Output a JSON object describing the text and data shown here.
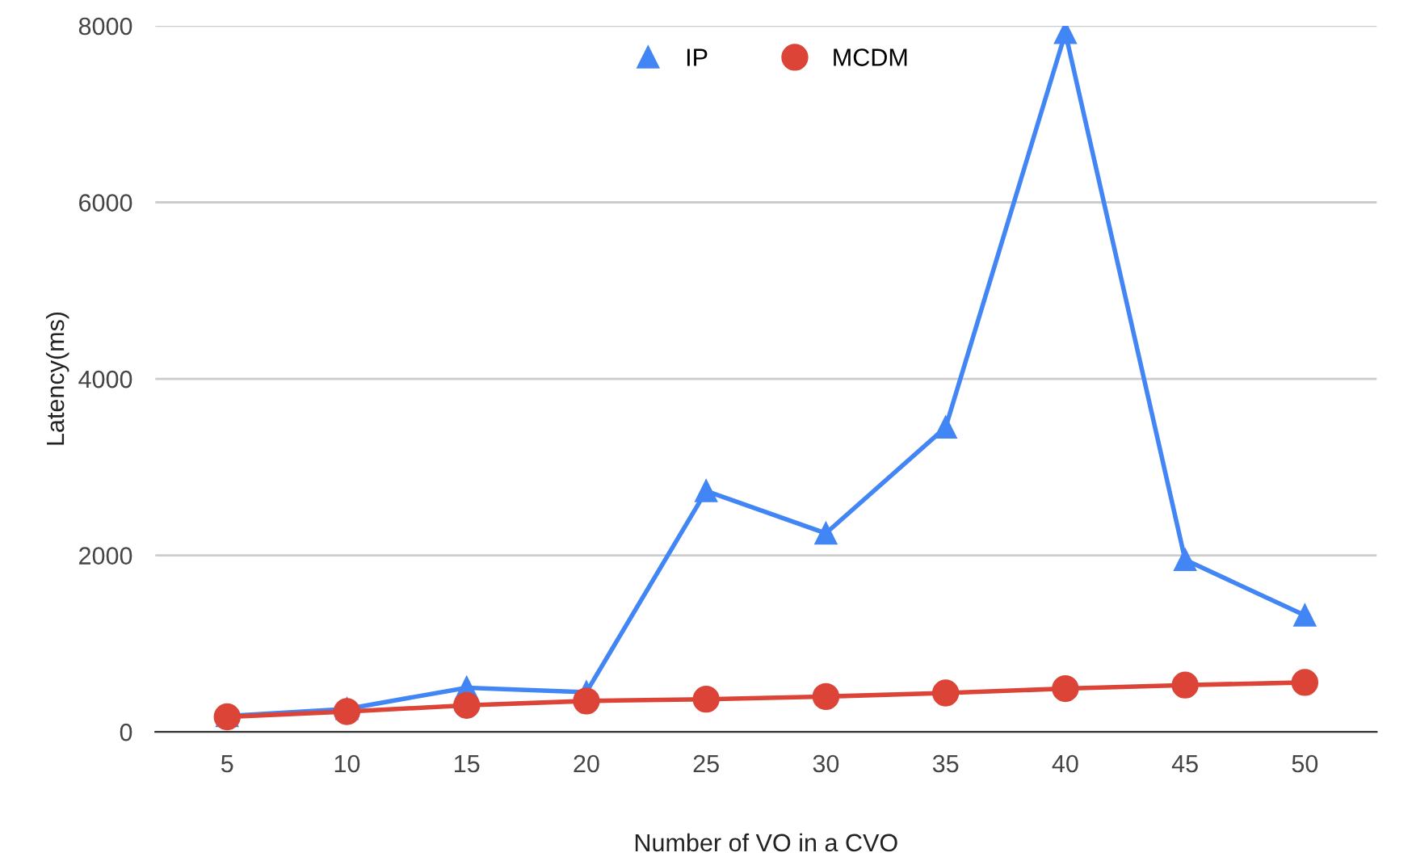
{
  "chart_data": {
    "type": "line",
    "xlabel": "Number of VO in a CVO",
    "ylabel": "Latency(ms)",
    "categories": [
      "5",
      "10",
      "15",
      "20",
      "25",
      "30",
      "35",
      "40",
      "45",
      "50"
    ],
    "series": [
      {
        "name": "IP",
        "color": "#4285f4",
        "marker": "triangle",
        "values": [
          180,
          260,
          500,
          450,
          2730,
          2250,
          3450,
          7920,
          1950,
          1320
        ]
      },
      {
        "name": "MCDM",
        "color": "#db4437",
        "marker": "circle",
        "values": [
          170,
          230,
          300,
          350,
          370,
          400,
          440,
          490,
          530,
          560
        ]
      }
    ],
    "ylim": [
      0,
      8000
    ],
    "yticks": [
      0,
      2000,
      4000,
      6000,
      8000
    ],
    "grid": "y",
    "legend": "top",
    "line_style": "solid"
  }
}
